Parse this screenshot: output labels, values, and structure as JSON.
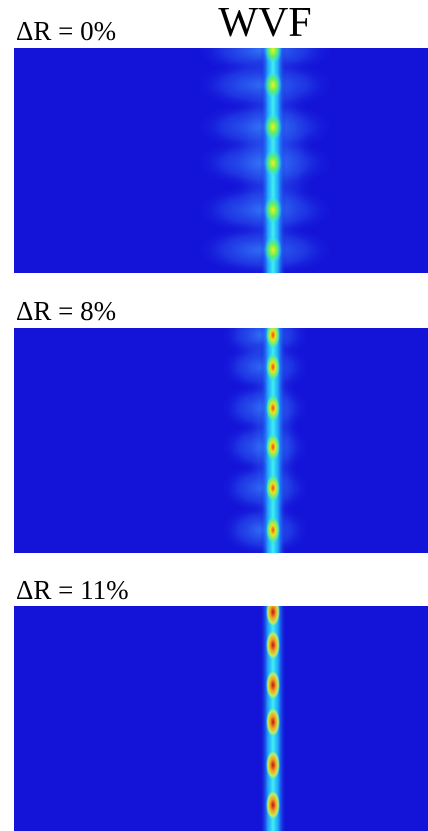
{
  "title": "WVF",
  "panels": [
    {
      "label": "ΔR = 0%"
    },
    {
      "label": "ΔR = 8%"
    },
    {
      "label": "ΔR = 11%"
    }
  ]
}
